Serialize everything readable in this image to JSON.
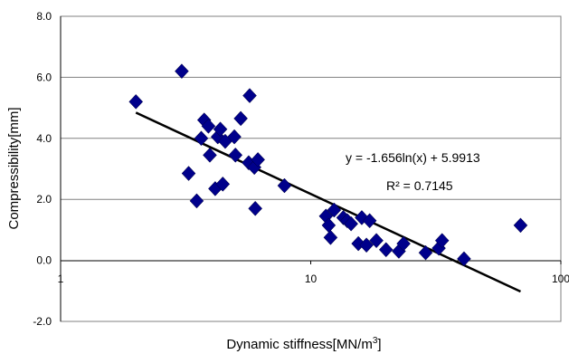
{
  "chart_data": {
    "type": "scatter",
    "title": "",
    "xlabel": "Dynamic stiffness[MN/m",
    "xlabel_sup": "3",
    "xlabel_end": "]",
    "ylabel": "Compressibility[mm]",
    "x_scale": "log",
    "xlim": [
      1,
      100
    ],
    "ylim": [
      -2,
      8
    ],
    "x_ticks": [
      1,
      10,
      100
    ],
    "x_tick_labels": [
      "1",
      "10",
      "100"
    ],
    "y_ticks": [
      -2,
      0,
      2,
      4,
      6,
      8
    ],
    "y_tick_labels": [
      "-2.0",
      "0.0",
      "2.0",
      "4.0",
      "6.0",
      "8.0"
    ],
    "grid": "horizontal",
    "legend": "none",
    "marker": "diamond",
    "colors": {
      "marker": "#00008B",
      "trendline": "#000000",
      "grid": "#808080"
    },
    "series": [
      {
        "points": [
          [
            2.0,
            5.2
          ],
          [
            3.05,
            6.2
          ],
          [
            3.25,
            2.85
          ],
          [
            3.5,
            1.95
          ],
          [
            3.65,
            4.0
          ],
          [
            3.75,
            4.6
          ],
          [
            3.9,
            4.4
          ],
          [
            3.95,
            3.45
          ],
          [
            4.15,
            2.35
          ],
          [
            4.25,
            4.05
          ],
          [
            4.35,
            4.3
          ],
          [
            4.45,
            2.5
          ],
          [
            4.55,
            3.9
          ],
          [
            4.95,
            4.05
          ],
          [
            5.0,
            3.45
          ],
          [
            5.25,
            4.65
          ],
          [
            5.65,
            3.2
          ],
          [
            5.7,
            5.4
          ],
          [
            5.95,
            3.05
          ],
          [
            6.0,
            1.7
          ],
          [
            6.15,
            3.3
          ],
          [
            7.85,
            2.45
          ],
          [
            11.5,
            1.45
          ],
          [
            11.8,
            1.15
          ],
          [
            12.0,
            0.75
          ],
          [
            12.4,
            1.65
          ],
          [
            13.5,
            1.4
          ],
          [
            14.0,
            1.3
          ],
          [
            14.5,
            1.2
          ],
          [
            15.5,
            0.55
          ],
          [
            16.0,
            1.4
          ],
          [
            16.7,
            0.5
          ],
          [
            17.2,
            1.3
          ],
          [
            18.3,
            0.65
          ],
          [
            20.0,
            0.35
          ],
          [
            22.5,
            0.3
          ],
          [
            23.5,
            0.55
          ],
          [
            28.8,
            0.25
          ],
          [
            32.5,
            0.4
          ],
          [
            33.5,
            0.65
          ],
          [
            41.0,
            0.05
          ],
          [
            69.0,
            1.15
          ]
        ]
      }
    ],
    "trendline": {
      "type": "log",
      "a": -1.656,
      "b": 5.9913,
      "x_from": 2.0,
      "x_to": 69.0,
      "equation": "y = -1.656ln(x) + 5.9913",
      "r_squared": "R² = 0.7145"
    }
  }
}
